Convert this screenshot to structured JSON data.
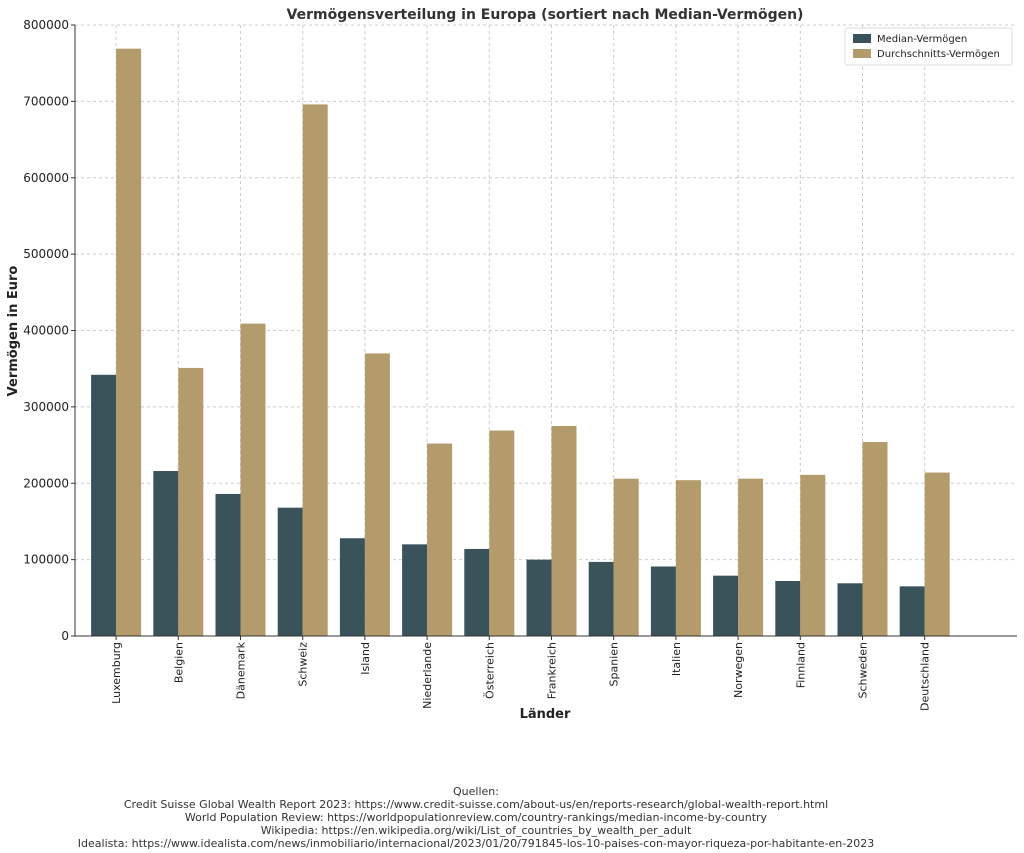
{
  "chart_data": {
    "type": "bar",
    "title": "Vermögensverteilung in Europa (sortiert nach Median-Vermögen)",
    "xlabel": "Länder",
    "ylabel": "Vermögen in Euro",
    "ylim": [
      0,
      800000
    ],
    "yticks": [
      0,
      100000,
      200000,
      300000,
      400000,
      500000,
      600000,
      700000,
      800000
    ],
    "ytick_labels": [
      "0",
      "100000",
      "200000",
      "300000",
      "400000",
      "500000",
      "600000",
      "700000",
      "800000"
    ],
    "grid": true,
    "legend_position": "top-right",
    "categories": [
      "Luxemburg",
      "Belgien",
      "Dänemark",
      "Schweiz",
      "Island",
      "Niederlande",
      "Österreich",
      "Frankreich",
      "Spanien",
      "Italien",
      "Norwegen",
      "Finnland",
      "Schweden",
      "Deutschland"
    ],
    "series": [
      {
        "name": "Median-Vermögen",
        "color": "#3a525a",
        "values": [
          342000,
          216000,
          186000,
          168000,
          128000,
          120000,
          114000,
          100000,
          97000,
          91000,
          79000,
          72000,
          69000,
          65000
        ]
      },
      {
        "name": "Durchschnitts-Vermögen",
        "color": "#b49b6c",
        "values": [
          769000,
          351000,
          409000,
          696000,
          370000,
          252000,
          269000,
          275000,
          206000,
          204000,
          206000,
          211000,
          254000,
          214000
        ]
      }
    ]
  },
  "sources": {
    "heading": "Quellen:",
    "lines": [
      "Credit Suisse Global Wealth Report 2023: https://www.credit-suisse.com/about-us/en/reports-research/global-wealth-report.html",
      "World Population Review: https://worldpopulationreview.com/country-rankings/median-income-by-country",
      "Wikipedia: https://en.wikipedia.org/wiki/List_of_countries_by_wealth_per_adult",
      "Idealista: https://www.idealista.com/news/inmobiliario/internacional/2023/01/20/791845-los-10-paises-con-mayor-riqueza-por-habitante-en-2023"
    ]
  }
}
